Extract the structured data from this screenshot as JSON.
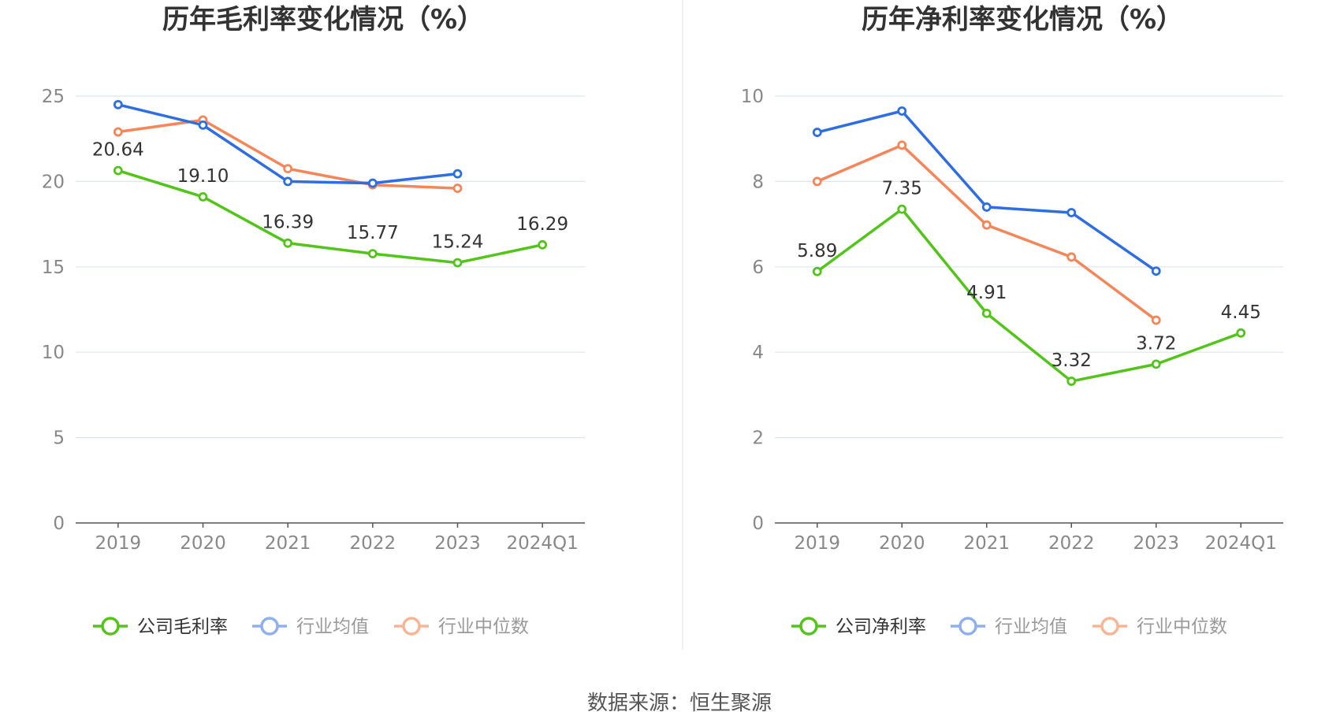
{
  "charts": [
    {
      "title": "历年毛利率变化情况（%）",
      "ylim": [
        0,
        25
      ],
      "yticks": [
        "0",
        "5",
        "10",
        "15",
        "20",
        "25"
      ],
      "legend": [
        "公司毛利率",
        "行业均值",
        "行业中位数"
      ]
    },
    {
      "title": "历年净利率变化情况（%）",
      "ylim": [
        0,
        10
      ],
      "yticks": [
        "0",
        "2",
        "4",
        "6",
        "8",
        "10"
      ],
      "legend": [
        "公司净利率",
        "行业均值",
        "行业中位数"
      ]
    }
  ],
  "colors": {
    "company": "#52c41a",
    "avg": "#2f6ee0",
    "median": "#f4875a",
    "grid": "#dde4f0",
    "axis": "#555555"
  },
  "source": "数据来源：恒生聚源",
  "chart_data": [
    {
      "type": "line",
      "title": "历年毛利率变化情况（%）",
      "categories": [
        "2019",
        "2020",
        "2021",
        "2022",
        "2023",
        "2024Q1"
      ],
      "ylim": [
        0,
        25
      ],
      "legend_position": "bottom",
      "series": [
        {
          "name": "公司毛利率",
          "values": [
            20.64,
            19.1,
            16.39,
            15.77,
            15.24,
            16.29
          ],
          "labels": [
            "20.64",
            "19.10",
            "16.39",
            "15.77",
            "15.24",
            "16.29"
          ]
        },
        {
          "name": "行业均值",
          "values": [
            24.5,
            23.3,
            20.0,
            19.9,
            20.45,
            null
          ]
        },
        {
          "name": "行业中位数",
          "values": [
            22.9,
            23.6,
            20.75,
            19.8,
            19.6,
            null
          ]
        }
      ]
    },
    {
      "type": "line",
      "title": "历年净利率变化情况（%）",
      "categories": [
        "2019",
        "2020",
        "2021",
        "2022",
        "2023",
        "2024Q1"
      ],
      "ylim": [
        0,
        10
      ],
      "legend_position": "bottom",
      "series": [
        {
          "name": "公司净利率",
          "values": [
            5.89,
            7.35,
            4.91,
            3.32,
            3.72,
            4.45
          ],
          "labels": [
            "5.89",
            "7.35",
            "4.91",
            "3.32",
            "3.72",
            "4.45"
          ]
        },
        {
          "name": "行业均值",
          "values": [
            9.15,
            9.65,
            7.4,
            7.27,
            5.9,
            null
          ]
        },
        {
          "name": "行业中位数",
          "values": [
            8.0,
            8.85,
            6.98,
            6.23,
            4.75,
            null
          ]
        }
      ]
    }
  ]
}
